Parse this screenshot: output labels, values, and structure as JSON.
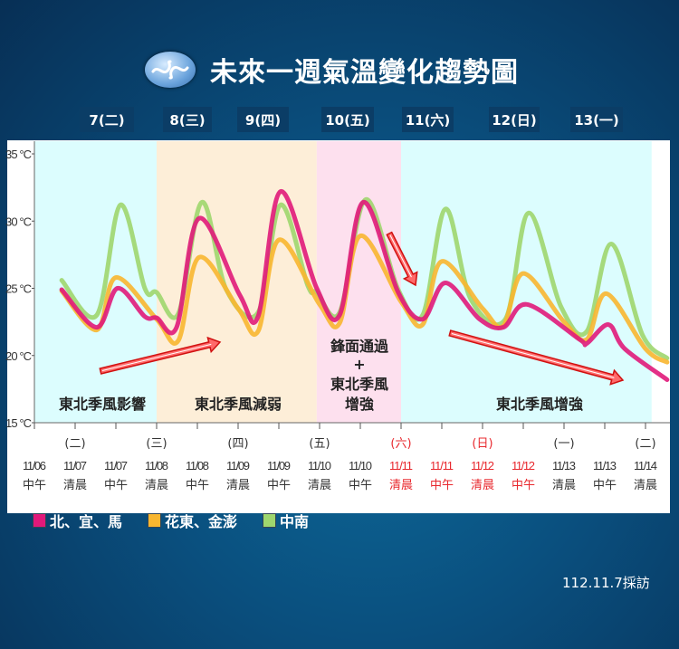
{
  "title": "未來一週氣溫變化趨勢圖",
  "logo_icon": "cwa-logo-icon",
  "day_headers": [
    "7(二)",
    "8(三)",
    "9(四)",
    "10(五)",
    "11(六)",
    "12(日)",
    "13(一)"
  ],
  "footer": "112.11.7採訪",
  "chart_data": {
    "type": "line",
    "title": "未來一週氣溫變化趨勢圖",
    "ylabel": "",
    "xlabel": "",
    "ylim": [
      15,
      35
    ],
    "yticks": [
      "35 °C",
      "30 °C",
      "25 °C",
      "20 °C",
      "15 °C"
    ],
    "ytick_values": [
      35,
      30,
      25,
      20,
      15
    ],
    "grid": false,
    "legend_placement": "bottom-left",
    "categories": [
      {
        "weekday": "",
        "date": "11/06",
        "period": "中午",
        "weekend": false
      },
      {
        "weekday": "(二)",
        "date": "11/07",
        "period": "清晨",
        "weekend": false
      },
      {
        "weekday": "",
        "date": "11/07",
        "period": "中午",
        "weekend": false
      },
      {
        "weekday": "(三)",
        "date": "11/08",
        "period": "清晨",
        "weekend": false
      },
      {
        "weekday": "",
        "date": "11/08",
        "period": "中午",
        "weekend": false
      },
      {
        "weekday": "(四)",
        "date": "11/09",
        "period": "清晨",
        "weekend": false
      },
      {
        "weekday": "",
        "date": "11/09",
        "period": "中午",
        "weekend": false
      },
      {
        "weekday": "(五)",
        "date": "11/10",
        "period": "清晨",
        "weekend": false
      },
      {
        "weekday": "",
        "date": "11/10",
        "period": "中午",
        "weekend": false
      },
      {
        "weekday": "(六)",
        "date": "11/11",
        "period": "清晨",
        "weekend": true
      },
      {
        "weekday": "",
        "date": "11/11",
        "period": "中午",
        "weekend": true
      },
      {
        "weekday": "(日)",
        "date": "11/12",
        "period": "清晨",
        "weekend": true
      },
      {
        "weekday": "",
        "date": "11/12",
        "period": "中午",
        "weekend": true
      },
      {
        "weekday": "(一)",
        "date": "11/13",
        "period": "清晨",
        "weekend": false
      },
      {
        "weekday": "",
        "date": "11/13",
        "period": "中午",
        "weekend": false
      },
      {
        "weekday": "(二)",
        "date": "11/14",
        "period": "清晨",
        "weekend": false
      }
    ],
    "regions": [
      {
        "label": "東北季風影響",
        "from": 0,
        "to": 3,
        "color": "#dcfdfe"
      },
      {
        "label": "東北季風減弱",
        "from": 3,
        "to": 6.93,
        "color": "#fdeed8"
      },
      {
        "label": "鋒面通過\n+\n東北季風\n增強",
        "from": 6.93,
        "to": 9,
        "color": "#fde0ee"
      },
      {
        "label": "東北季風增強",
        "from": 9,
        "to": 15.15,
        "color": "#dcfdfe"
      }
    ],
    "series": [
      {
        "name": "中南",
        "color": "#9ed66e",
        "points": [
          [
            0.67,
            25.6
          ],
          [
            1.53,
            23.0
          ],
          [
            2.11,
            31.2
          ],
          [
            2.71,
            25.0
          ],
          [
            3.0,
            24.7
          ],
          [
            3.53,
            23.1
          ],
          [
            4.11,
            31.4
          ],
          [
            4.71,
            24.9
          ],
          [
            5.49,
            23.2
          ],
          [
            6.04,
            31.2
          ],
          [
            6.71,
            25.2
          ],
          [
            6.93,
            24.7
          ],
          [
            7.49,
            23.2
          ],
          [
            8.13,
            31.6
          ],
          [
            8.93,
            24.9
          ],
          [
            9.53,
            23.0
          ],
          [
            10.09,
            30.9
          ],
          [
            10.71,
            24.2
          ],
          [
            11.56,
            22.7
          ],
          [
            12.13,
            30.6
          ],
          [
            12.93,
            23.6
          ],
          [
            13.56,
            21.8
          ],
          [
            14.16,
            28.3
          ],
          [
            14.93,
            21.5
          ],
          [
            15.53,
            19.8
          ]
        ]
      },
      {
        "name": "花東、金澎",
        "color": "#f8b630",
        "points": [
          [
            0.67,
            24.8
          ],
          [
            1.53,
            21.9
          ],
          [
            2.0,
            25.8
          ],
          [
            3.0,
            22.7
          ],
          [
            3.53,
            21.1
          ],
          [
            4.04,
            27.3
          ],
          [
            5.0,
            23.5
          ],
          [
            5.49,
            21.8
          ],
          [
            6.0,
            28.6
          ],
          [
            7.0,
            23.8
          ],
          [
            7.49,
            22.4
          ],
          [
            8.0,
            28.9
          ],
          [
            9.0,
            24.0
          ],
          [
            9.53,
            22.3
          ],
          [
            10.0,
            27.0
          ],
          [
            11.0,
            23.5
          ],
          [
            11.51,
            22.2
          ],
          [
            12.0,
            26.1
          ],
          [
            13.0,
            22.5
          ],
          [
            13.56,
            21.2
          ],
          [
            14.04,
            24.6
          ],
          [
            15.0,
            20.5
          ],
          [
            15.53,
            19.5
          ]
        ]
      },
      {
        "name": "北、宜、馬",
        "color": "#e0197a",
        "points": [
          [
            0.67,
            24.9
          ],
          [
            1.53,
            22.1
          ],
          [
            2.04,
            25.0
          ],
          [
            2.71,
            22.9
          ],
          [
            3.0,
            22.8
          ],
          [
            3.49,
            22.1
          ],
          [
            4.04,
            30.2
          ],
          [
            5.04,
            24.5
          ],
          [
            5.49,
            22.9
          ],
          [
            6.04,
            32.2
          ],
          [
            6.93,
            25.0
          ],
          [
            7.49,
            23.0
          ],
          [
            8.07,
            31.4
          ],
          [
            8.93,
            24.7
          ],
          [
            9.53,
            22.7
          ],
          [
            10.09,
            25.4
          ],
          [
            10.93,
            22.7
          ],
          [
            11.51,
            22.1
          ],
          [
            12.09,
            23.8
          ],
          [
            13.38,
            21.2
          ],
          [
            13.56,
            20.9
          ],
          [
            14.09,
            22.3
          ],
          [
            14.49,
            20.5
          ],
          [
            15.53,
            18.2
          ]
        ]
      }
    ],
    "legend": [
      "北、宜、馬",
      "花東、金澎",
      "中南"
    ],
    "legend_colors": [
      "#e0197a",
      "#f8b630",
      "#9ed66e"
    ],
    "annotations": [
      "rising-trend-arrow",
      "falling-trend-arrow",
      "falling-trend-arrow"
    ]
  }
}
